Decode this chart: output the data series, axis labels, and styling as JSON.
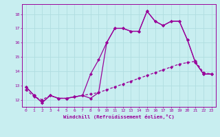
{
  "xlabel": "Windchill (Refroidissement éolien,°C)",
  "background_color": "#c8eef0",
  "grid_color": "#b0dde0",
  "line_color": "#990099",
  "xlim": [
    -0.5,
    23.5
  ],
  "ylim": [
    11.5,
    18.7
  ],
  "yticks": [
    12,
    13,
    14,
    15,
    16,
    17,
    18
  ],
  "xticks": [
    0,
    1,
    2,
    3,
    4,
    5,
    6,
    7,
    8,
    9,
    10,
    11,
    12,
    13,
    14,
    15,
    16,
    17,
    18,
    19,
    20,
    21,
    22,
    23
  ],
  "curve1_x": [
    0,
    1,
    2,
    3,
    4,
    5,
    6,
    7,
    8,
    9,
    10,
    11,
    12,
    13,
    14,
    15,
    16,
    17,
    18,
    19,
    20,
    21,
    22,
    23
  ],
  "curve1_y": [
    12.9,
    12.3,
    11.8,
    12.3,
    12.1,
    12.1,
    12.2,
    12.3,
    12.1,
    12.5,
    16.0,
    17.0,
    17.0,
    16.8,
    16.8,
    18.2,
    17.5,
    17.2,
    17.5,
    17.5,
    16.2,
    14.6,
    13.8,
    13.8
  ],
  "curve2_x": [
    0,
    1,
    2,
    3,
    4,
    5,
    6,
    7,
    8,
    9,
    10,
    11,
    12,
    13,
    14,
    15,
    16,
    17,
    18,
    19,
    20,
    21,
    22,
    23
  ],
  "curve2_y": [
    12.9,
    12.3,
    11.8,
    12.3,
    12.1,
    12.1,
    12.2,
    12.3,
    13.8,
    14.8,
    16.0,
    17.0,
    17.0,
    16.8,
    16.8,
    18.2,
    17.5,
    17.2,
    17.5,
    17.5,
    16.2,
    14.6,
    13.8,
    13.8
  ],
  "curve3_x": [
    0,
    1,
    2,
    3,
    4,
    5,
    6,
    7,
    8,
    9,
    10,
    11,
    12,
    13,
    14,
    15,
    16,
    17,
    18,
    19,
    20,
    21,
    22,
    23
  ],
  "curve3_y": [
    12.7,
    12.2,
    12.0,
    12.3,
    12.1,
    12.1,
    12.2,
    12.3,
    12.4,
    12.5,
    12.7,
    12.9,
    13.1,
    13.3,
    13.5,
    13.7,
    13.9,
    14.1,
    14.3,
    14.5,
    14.6,
    14.7,
    13.9,
    13.8
  ]
}
